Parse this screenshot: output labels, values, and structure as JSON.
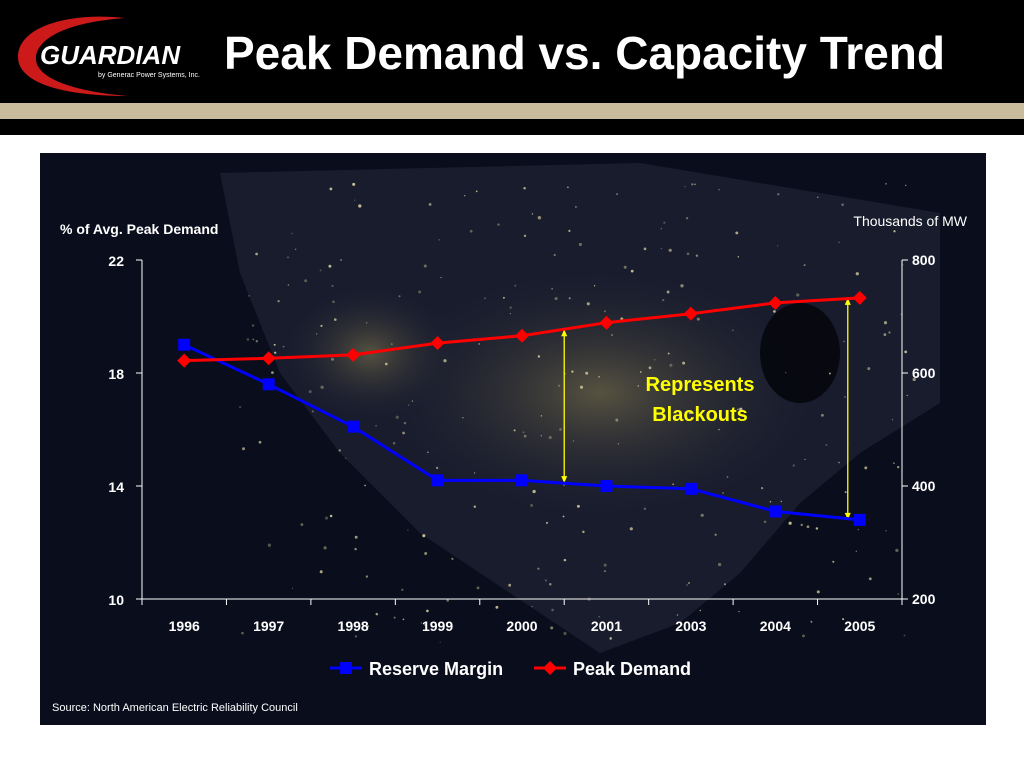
{
  "header": {
    "logo_text": "GUARDIAN",
    "logo_subtext": "by Generac Power Systems, Inc.",
    "title": "Peak Demand vs. Capacity Trend"
  },
  "colors": {
    "header_bg": "#000000",
    "band": "#c8bc9d",
    "reserve_margin": "#0000ff",
    "peak_demand": "#ff0000",
    "annotation": "#ffff00"
  },
  "chart_data": {
    "type": "line",
    "left_axis_label": "% of Avg. Peak Demand",
    "right_axis_label": "Thousands of MW",
    "categories": [
      "1996",
      "1997",
      "1998",
      "1999",
      "2000",
      "2001",
      "2003",
      "2004",
      "2005"
    ],
    "left_ylim": [
      10,
      22
    ],
    "left_ticks": [
      "22",
      "18",
      "14",
      "10"
    ],
    "right_ylim": [
      200,
      800
    ],
    "right_ticks": [
      "800",
      "600",
      "400",
      "200"
    ],
    "series": [
      {
        "name": "Reserve Margin",
        "axis": "left",
        "marker": "square",
        "values": [
          19.0,
          17.6,
          16.1,
          14.2,
          14.2,
          14.0,
          13.9,
          13.1,
          12.8
        ]
      },
      {
        "name": "Peak Demand",
        "axis": "right",
        "marker": "diamond",
        "values": [
          622,
          626,
          632,
          653,
          666,
          689,
          705,
          724,
          733
        ]
      }
    ],
    "annotation": "Represents Blackouts",
    "source": "Source:  North American Electric Reliability Council"
  }
}
